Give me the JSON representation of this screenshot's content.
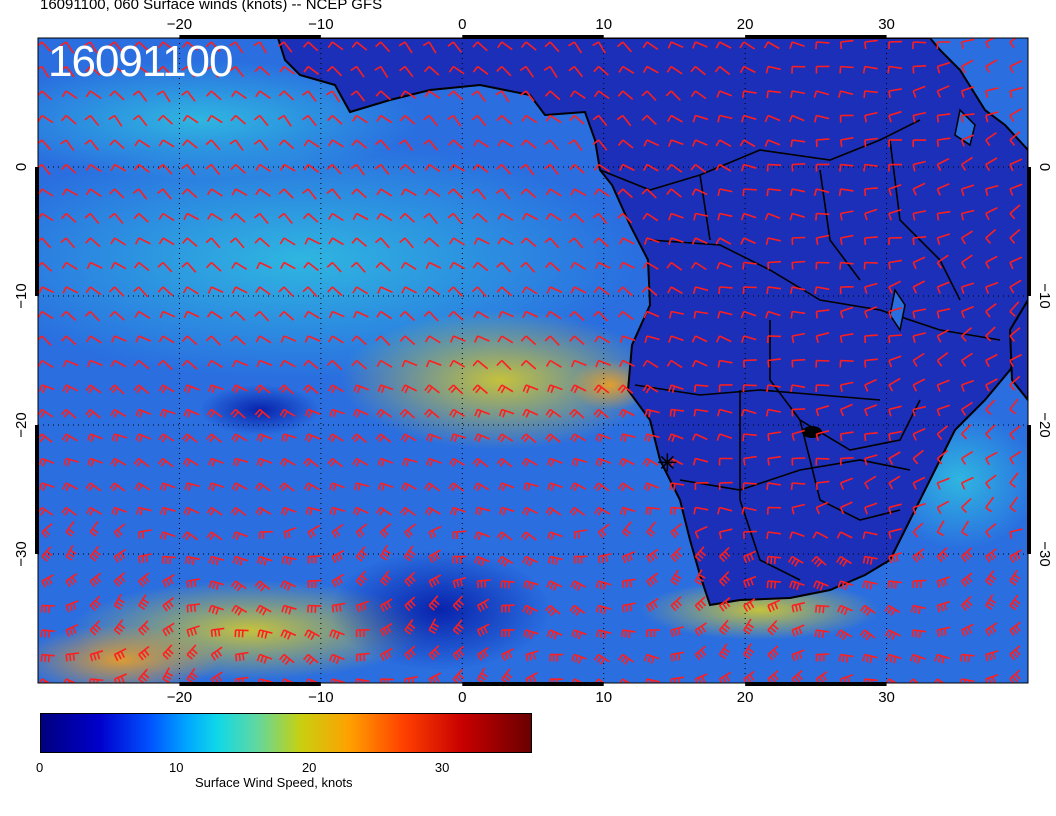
{
  "title": "16091100, 060 Surface winds (knots) -- NCEP GFS",
  "stamp": "16091100",
  "map": {
    "lon_range": [
      -30,
      40
    ],
    "lat_range": [
      -40,
      10
    ],
    "x_ticks": [
      {
        "value": -20,
        "label": "−20"
      },
      {
        "value": -10,
        "label": "−10"
      },
      {
        "value": 0,
        "label": "0"
      },
      {
        "value": 10,
        "label": "10"
      },
      {
        "value": 20,
        "label": "20"
      },
      {
        "value": 30,
        "label": "30"
      }
    ],
    "y_ticks": [
      {
        "value": 0,
        "label": "0"
      },
      {
        "value": -10,
        "label": "−10"
      },
      {
        "value": -20,
        "label": "−20"
      },
      {
        "value": -30,
        "label": "−30"
      }
    ],
    "marker": {
      "lon": 14.5,
      "lat": -22.9
    },
    "colors": {
      "ocean": "#2a6ee0",
      "land": "#1c2fb8",
      "barb": "#ff1e1e",
      "coast": "#000000"
    }
  },
  "colorbar": {
    "title": "Surface Wind Speed, knots",
    "ticks": [
      {
        "value": 0,
        "label": "0"
      },
      {
        "value": 10,
        "label": "10"
      },
      {
        "value": 20,
        "label": "20"
      },
      {
        "value": 30,
        "label": "30"
      }
    ],
    "range": [
      0,
      37
    ]
  }
}
